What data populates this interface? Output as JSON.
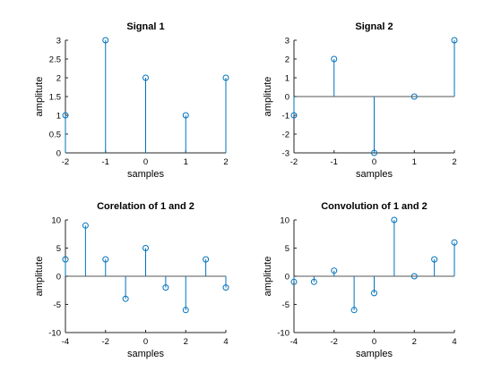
{
  "chart_data": [
    {
      "type": "stem",
      "title": "Signal 1",
      "xlabel": "samples",
      "ylabel": "amplitute",
      "x": [
        -2,
        -1,
        0,
        1,
        2
      ],
      "values": [
        1,
        3,
        2,
        1,
        2
      ],
      "xlim": [
        -2,
        2
      ],
      "ylim": [
        0,
        3
      ],
      "xticks": [
        -2,
        -1,
        0,
        1,
        2
      ],
      "yticks": [
        0,
        0.5,
        1,
        1.5,
        2,
        2.5,
        3
      ],
      "color": "#0072BD",
      "grid": false
    },
    {
      "type": "stem",
      "title": "Signal 2",
      "xlabel": "samples",
      "ylabel": "amplitute",
      "x": [
        -2,
        -1,
        0,
        1,
        2
      ],
      "values": [
        -1,
        2,
        -3,
        0,
        3
      ],
      "xlim": [
        -2,
        2
      ],
      "ylim": [
        -3,
        3
      ],
      "xticks": [
        -2,
        -1,
        0,
        1,
        2
      ],
      "yticks": [
        -3,
        -2,
        -1,
        0,
        1,
        2,
        3
      ],
      "color": "#0072BD",
      "grid": false
    },
    {
      "type": "stem",
      "title": "Corelation of 1 and 2",
      "xlabel": "samples",
      "ylabel": "amplitute",
      "x": [
        -4,
        -3,
        -2,
        -1,
        0,
        1,
        2,
        3,
        4
      ],
      "values": [
        3,
        9,
        3,
        -4,
        5,
        -2,
        -6,
        3,
        -2
      ],
      "xlim": [
        -4,
        4
      ],
      "ylim": [
        -10,
        10
      ],
      "xticks": [
        -4,
        -2,
        0,
        2,
        4
      ],
      "yticks": [
        -10,
        -5,
        0,
        5,
        10
      ],
      "color": "#0072BD",
      "grid": false
    },
    {
      "type": "stem",
      "title": "Convolution of 1 and 2",
      "xlabel": "samples",
      "ylabel": "amplitute",
      "x": [
        -4,
        -3,
        -2,
        -1,
        0,
        1,
        2,
        3,
        4
      ],
      "values": [
        -1,
        -1,
        1,
        -6,
        -3,
        10,
        0,
        3,
        6
      ],
      "xlim": [
        -4,
        4
      ],
      "ylim": [
        -10,
        10
      ],
      "xticks": [
        -4,
        -2,
        0,
        2,
        4
      ],
      "yticks": [
        -10,
        -5,
        0,
        5,
        10
      ],
      "color": "#0072BD",
      "grid": false
    }
  ]
}
